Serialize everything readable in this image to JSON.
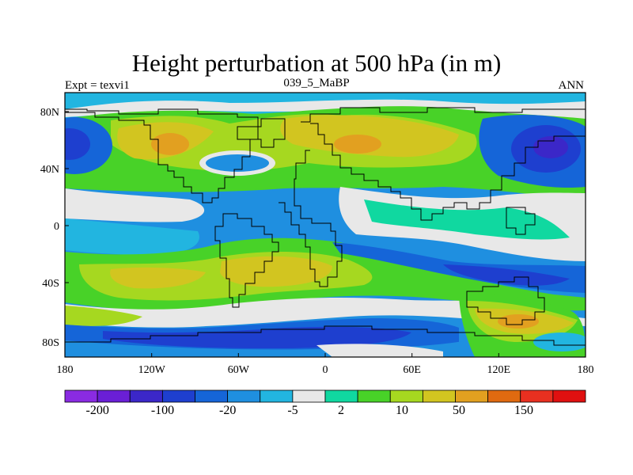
{
  "chart_data": {
    "type": "heatmap",
    "title": "Height perturbation at 500 hPa (in m)",
    "left_label": "Expt = texvi1",
    "center_label": "039_5_MaBP",
    "right_label": "ANN",
    "x_ticks": [
      "180",
      "120W",
      "60W",
      "0",
      "60E",
      "120E",
      "180"
    ],
    "y_ticks": [
      "80N",
      "40N",
      "0",
      "40S",
      "80S"
    ],
    "x_range": [
      -180,
      180
    ],
    "y_range": [
      -90,
      90
    ],
    "colorbar_labels": [
      "-200",
      "-100",
      "-20",
      "-5",
      "2",
      "10",
      "50",
      "150"
    ],
    "colorbar_colors": [
      "#8a2be2",
      "#6a1fd6",
      "#3b27c8",
      "#1e3fcf",
      "#1565d8",
      "#1f8fe0",
      "#22b5e0",
      "#e8e8e8",
      "#10d8a0",
      "#48d228",
      "#a6d820",
      "#d2c520",
      "#e2a020",
      "#e06a10",
      "#e83020",
      "#e01010"
    ]
  }
}
